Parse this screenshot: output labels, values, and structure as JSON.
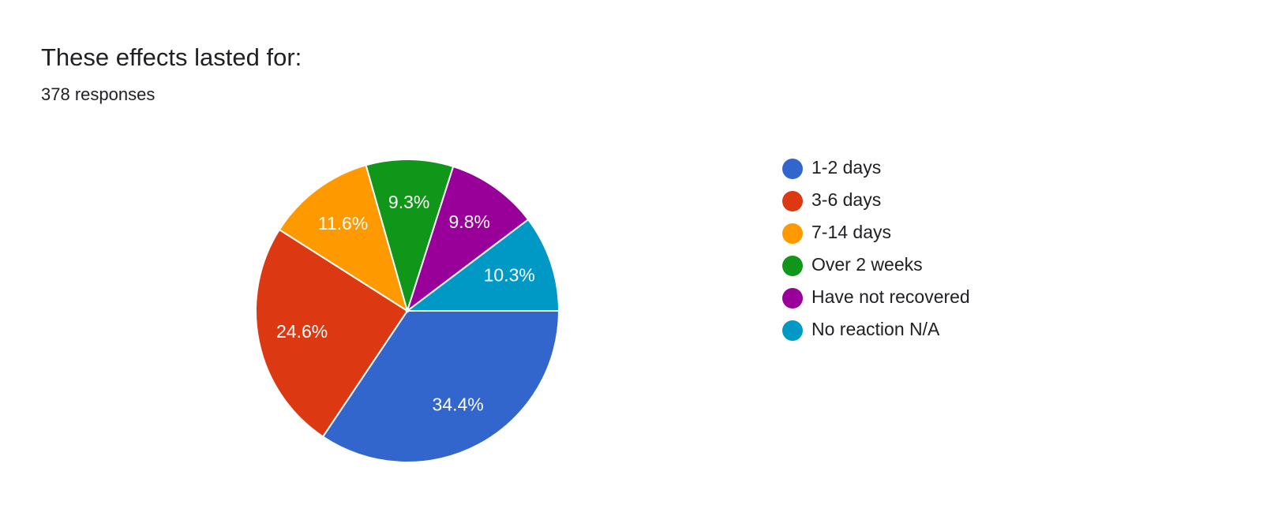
{
  "chart_data": {
    "type": "pie",
    "title": "These effects lasted for:",
    "subtitle": "378 responses",
    "categories": [
      "1-2 days",
      "3-6 days",
      "7-14 days",
      "Over 2 weeks",
      "Have not recovered",
      "No reaction N/A"
    ],
    "values": [
      34.4,
      24.6,
      11.6,
      9.3,
      9.8,
      10.3
    ],
    "value_labels": [
      "34.4%",
      "24.6%",
      "11.6%",
      "9.3%",
      "9.8%",
      "10.3%"
    ],
    "colors": [
      "#3366cc",
      "#dc3912",
      "#ff9900",
      "#109618",
      "#990099",
      "#0099c6"
    ],
    "legend": "right"
  }
}
